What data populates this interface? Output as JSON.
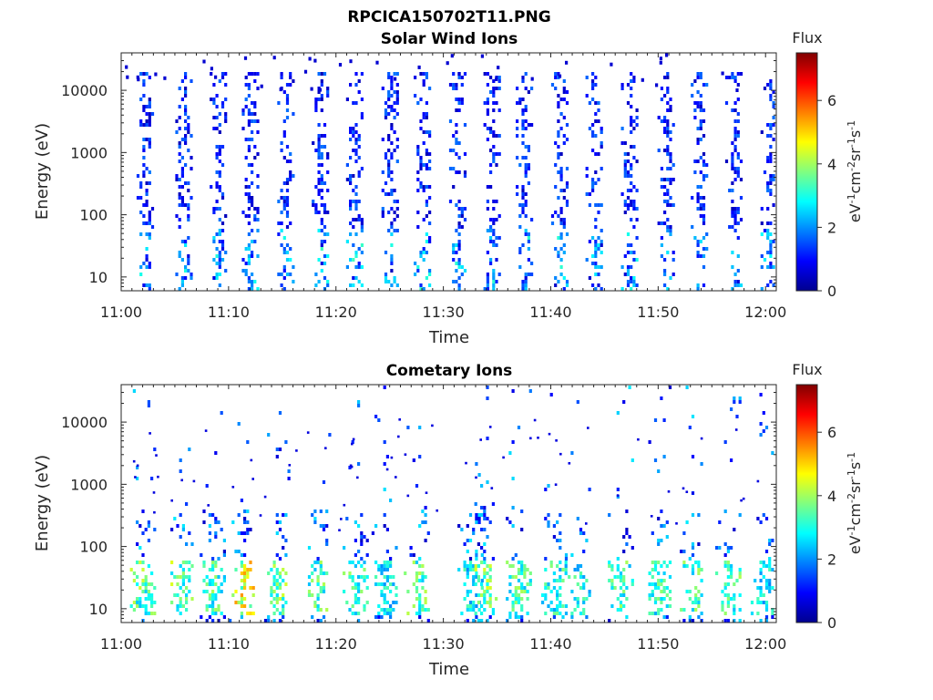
{
  "figure": {
    "title": "RPCICA150702T11.PNG"
  },
  "chart_data": [
    {
      "type": "heatmap",
      "title": "Solar Wind Ions",
      "xlabel": "Time",
      "ylabel": "Energy (eV)",
      "xticks": [
        "11:00",
        "11:10",
        "11:20",
        "11:30",
        "11:40",
        "11:50",
        "12:00"
      ],
      "xlim": [
        "11:00",
        "12:01"
      ],
      "yscale": "log",
      "yticks": [
        "10",
        "100",
        "1000",
        "10000"
      ],
      "ylim": [
        6,
        40000
      ],
      "colorbar": {
        "title": "Flux",
        "label": "eV-1cm-2sr-1s-1",
        "ticks": [
          "0",
          "2",
          "4",
          "6"
        ],
        "range": [
          0,
          7.5
        ]
      },
      "colormap": "jet",
      "sweep_centers_min": [
        2.2,
        5.8,
        9.0,
        12.0,
        15.3,
        18.5,
        21.7,
        25.0,
        28.0,
        31.3,
        34.5,
        37.5,
        40.8,
        44.0,
        47.3,
        50.7,
        53.8,
        57.0,
        60.3
      ],
      "energy_range_eV": [
        6,
        20000
      ],
      "flux_range_typical": [
        0.5,
        3.0
      ]
    },
    {
      "type": "heatmap",
      "title": "Cometary Ions",
      "xlabel": "Time",
      "ylabel": "Energy (eV)",
      "xticks": [
        "11:00",
        "11:10",
        "11:20",
        "11:30",
        "11:40",
        "11:50",
        "12:00"
      ],
      "xlim": [
        "11:00",
        "12:01"
      ],
      "yscale": "log",
      "yticks": [
        "10",
        "100",
        "1000",
        "10000"
      ],
      "ylim": [
        6,
        40000
      ],
      "colorbar": {
        "title": "Flux",
        "label": "eV-1cm-2sr-1s-1",
        "ticks": [
          "0",
          "2",
          "4",
          "6"
        ],
        "range": [
          0,
          7.5
        ]
      },
      "colormap": "jet",
      "burst_centers_min": [
        2.0,
        5.5,
        8.5,
        11.2,
        14.5,
        18.3,
        21.8,
        24.5,
        27.5,
        32.5,
        33.8,
        37.0,
        40.3,
        42.5,
        46.5,
        50.0,
        53.2,
        56.5,
        59.8
      ],
      "peak_flux_at_min": 11.2,
      "peak_flux_value": 5.5,
      "energy_core_eV": [
        8,
        60
      ]
    }
  ]
}
